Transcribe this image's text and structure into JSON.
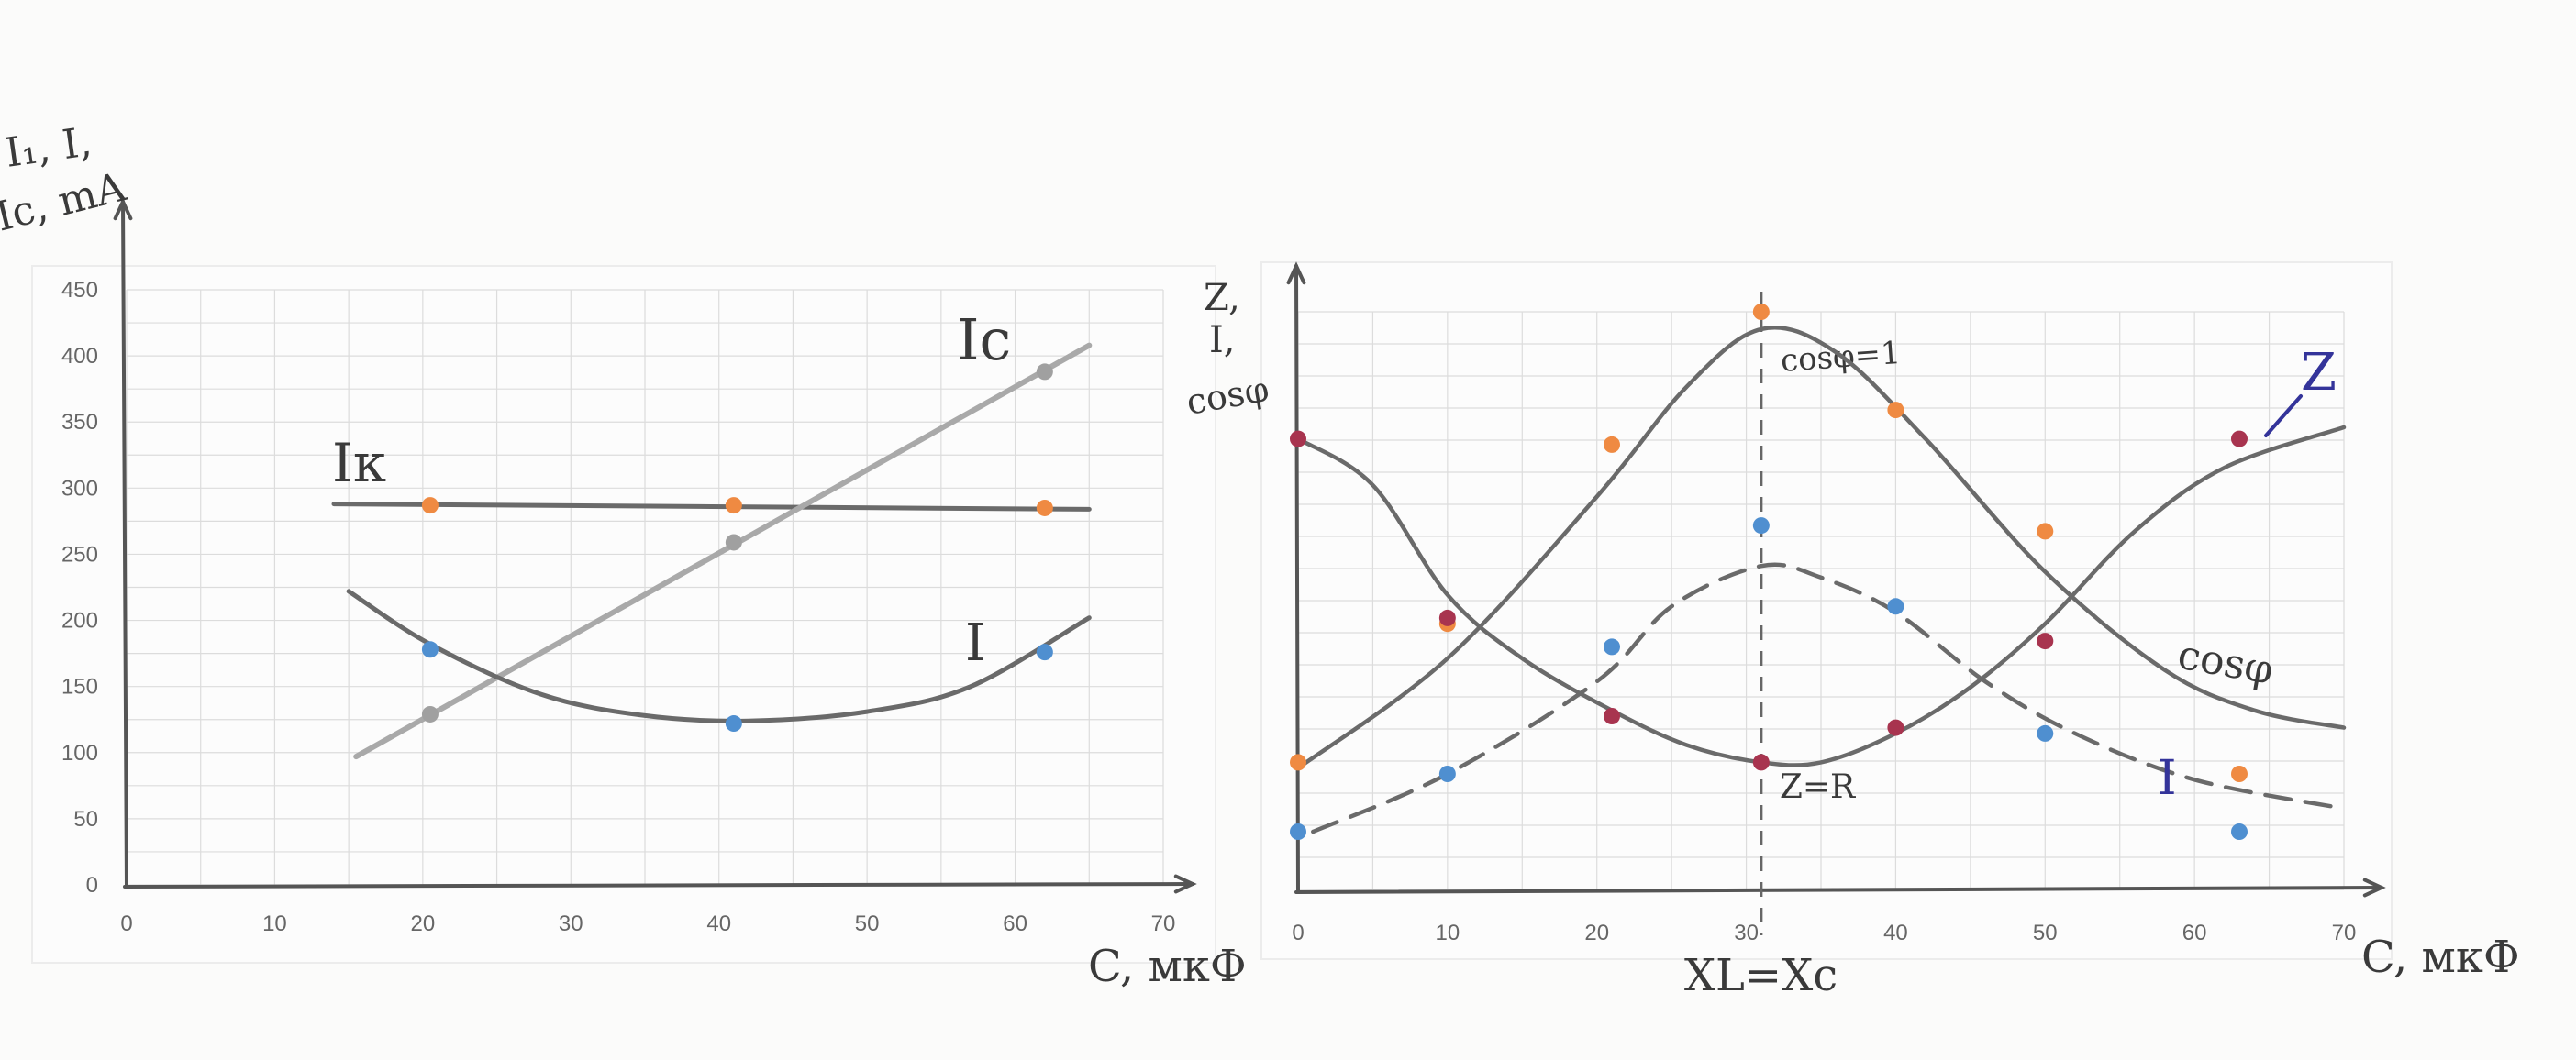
{
  "colors": {
    "pencil": "#6a6a6a",
    "pencil_light": "#a9a9a9",
    "grid": "#dcdcdc",
    "dot_blue": "#4f8fd0",
    "dot_orange": "#ef8a42",
    "dot_gray": "#a0a0a0",
    "dot_red": "#a8344f",
    "ink_blue": "#34349a"
  },
  "chart_data": [
    {
      "type": "line",
      "ylabel": "I₁, I, Ic, mA",
      "xlabel": "C, мкФ",
      "x_ticks": [
        "0",
        "10",
        "20",
        "30",
        "40",
        "50",
        "60",
        "70"
      ],
      "y_ticks": [
        "0",
        "50",
        "100",
        "150",
        "200",
        "250",
        "300",
        "350",
        "400",
        "450"
      ],
      "xlim": [
        0,
        70
      ],
      "ylim": [
        0,
        450
      ],
      "grid": true,
      "series": [
        {
          "name": "Iк",
          "color": "orange",
          "points": [
            [
              20.5,
              287
            ],
            [
              41,
              287
            ],
            [
              62,
              285
            ]
          ],
          "curve": [
            [
              14,
              288
            ],
            [
              65,
              284
            ]
          ]
        },
        {
          "name": "Ic",
          "color": "gray",
          "points": [
            [
              20.5,
              129
            ],
            [
              41,
              259
            ],
            [
              62,
              388
            ]
          ],
          "curve": [
            [
              15.5,
              97
            ],
            [
              65,
              408
            ]
          ]
        },
        {
          "name": "I",
          "color": "blue",
          "points": [
            [
              20.5,
              178
            ],
            [
              41,
              122
            ],
            [
              62,
              176
            ]
          ],
          "curve": [
            [
              15,
              222
            ],
            [
              20.5,
              182
            ],
            [
              28,
              144
            ],
            [
              35,
              128
            ],
            [
              42,
              124
            ],
            [
              50,
              131
            ],
            [
              57,
              150
            ],
            [
              65,
              202
            ]
          ]
        }
      ]
    },
    {
      "type": "line",
      "ylabel": "Z, I, cosφ",
      "xlabel": "C, мкФ",
      "x_ticks": [
        "0",
        "10",
        "20",
        "30",
        "40",
        "50",
        "60",
        "70"
      ],
      "xlim": [
        0,
        70
      ],
      "grid": true,
      "resonance": {
        "x": 31,
        "top_label": "cosφ=1",
        "bottom_label": "Z=R",
        "axis_label": "XL=Xc"
      },
      "series": [
        {
          "name": "cosφ",
          "color": "orange",
          "points": [
            [
              0,
              0.22
            ],
            [
              10,
              0.46
            ],
            [
              21,
              0.77
            ],
            [
              31,
              1.0
            ],
            [
              40,
              0.83
            ],
            [
              50,
              0.62
            ],
            [
              63,
              0.2
            ]
          ],
          "curve": [
            [
              0,
              0.21
            ],
            [
              10,
              0.4
            ],
            [
              20,
              0.68
            ],
            [
              26,
              0.87
            ],
            [
              31,
              0.97
            ],
            [
              36,
              0.93
            ],
            [
              42,
              0.78
            ],
            [
              50,
              0.55
            ],
            [
              58,
              0.38
            ],
            [
              64,
              0.31
            ],
            [
              70,
              0.28
            ]
          ]
        },
        {
          "name": "I",
          "color": "blue",
          "points": [
            [
              0,
              0.1
            ],
            [
              10,
              0.2
            ],
            [
              21,
              0.42
            ],
            [
              31,
              0.63
            ],
            [
              40,
              0.49
            ],
            [
              50,
              0.27
            ],
            [
              63,
              0.1
            ]
          ],
          "curve": [
            [
              1,
              0.1
            ],
            [
              10,
              0.2
            ],
            [
              20,
              0.36
            ],
            [
              25,
              0.49
            ],
            [
              31,
              0.56
            ],
            [
              35,
              0.54
            ],
            [
              40,
              0.48
            ],
            [
              46,
              0.36
            ],
            [
              52,
              0.27
            ],
            [
              60,
              0.19
            ],
            [
              70,
              0.14
            ]
          ]
        },
        {
          "name": "Z",
          "color": "red",
          "points": [
            [
              0,
              0.78
            ],
            [
              10,
              0.47
            ],
            [
              21,
              0.3
            ],
            [
              31,
              0.22
            ],
            [
              40,
              0.28
            ],
            [
              50,
              0.43
            ],
            [
              63,
              0.78
            ]
          ],
          "curve": [
            [
              0,
              0.78
            ],
            [
              5,
              0.7
            ],
            [
              10,
              0.51
            ],
            [
              15,
              0.4
            ],
            [
              21,
              0.31
            ],
            [
              26,
              0.25
            ],
            [
              31,
              0.22
            ],
            [
              35,
              0.22
            ],
            [
              40,
              0.27
            ],
            [
              45,
              0.35
            ],
            [
              50,
              0.46
            ],
            [
              56,
              0.62
            ],
            [
              62,
              0.73
            ],
            [
              70,
              0.8
            ]
          ]
        }
      ]
    }
  ]
}
